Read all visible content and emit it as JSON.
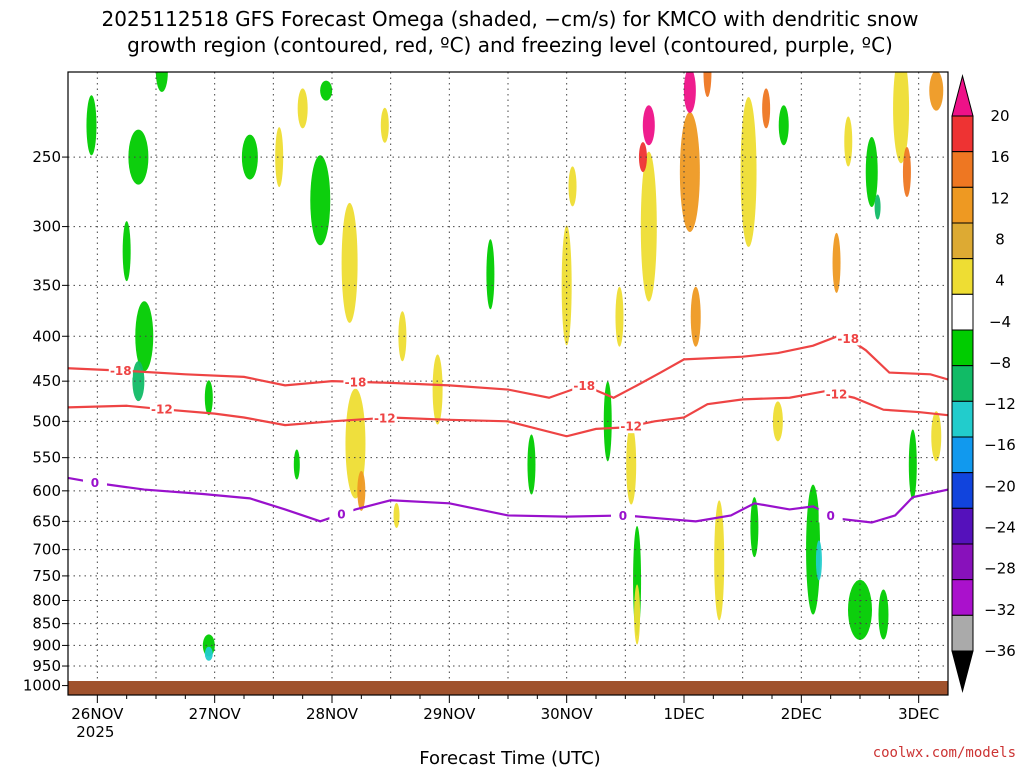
{
  "chart_data": {
    "type": "heatmap",
    "title_lines": [
      "2025112518 GFS Forecast Omega (shaded, −cm/s) for KMCO with dendritic snow",
      "growth region (contoured, red, ºC) and freezing level (contoured, purple, ºC)"
    ],
    "xlabel": "Forecast Time (UTC)",
    "credit": "coolwx.com/models",
    "x_ticks": [
      {
        "label": "26NOV",
        "sub": "2025",
        "day": 0
      },
      {
        "label": "27NOV",
        "day": 1
      },
      {
        "label": "28NOV",
        "day": 2
      },
      {
        "label": "29NOV",
        "day": 3
      },
      {
        "label": "30NOV",
        "day": 4
      },
      {
        "label": "1DEC",
        "day": 5
      },
      {
        "label": "2DEC",
        "day": 6
      },
      {
        "label": "3DEC",
        "day": 7
      }
    ],
    "x_range_days": [
      -0.25,
      7.25
    ],
    "y_ticks": [
      250,
      300,
      350,
      400,
      450,
      500,
      550,
      600,
      650,
      700,
      750,
      800,
      850,
      900,
      950,
      1000
    ],
    "y_range_hpa": [
      200,
      1025
    ],
    "y_scale": "log",
    "colorbar": {
      "labels": [
        "20",
        "16",
        "12",
        "8",
        "4",
        "−4",
        "−8",
        "−12",
        "−16",
        "−20",
        "−24",
        "−28",
        "−32",
        "−36"
      ],
      "colors": [
        "#ee1188",
        "#ee3333",
        "#ee7722",
        "#ee9922",
        "#ddaa33",
        "#eedd33",
        "#ffffff",
        "#00cc00",
        "#11bb66",
        "#22cccc",
        "#1199ee",
        "#1144dd",
        "#5511bb",
        "#8811bb",
        "#aa11cc",
        "#aaaaaa",
        "#000000"
      ]
    },
    "contours": [
      {
        "name": "-18",
        "color": "#ee4444",
        "label_days": [
          0.2,
          2.2,
          4.15,
          6.4
        ],
        "points": [
          [
            -0.25,
            435
          ],
          [
            0.25,
            438
          ],
          [
            0.75,
            442
          ],
          [
            1.25,
            445
          ],
          [
            1.6,
            455
          ],
          [
            2.0,
            450
          ],
          [
            2.5,
            452
          ],
          [
            3.0,
            455
          ],
          [
            3.5,
            460
          ],
          [
            3.85,
            470
          ],
          [
            4.15,
            455
          ],
          [
            4.4,
            470
          ],
          [
            4.6,
            455
          ],
          [
            4.8,
            440
          ],
          [
            5.0,
            425
          ],
          [
            5.5,
            422
          ],
          [
            5.8,
            418
          ],
          [
            6.1,
            410
          ],
          [
            6.35,
            398
          ],
          [
            6.55,
            415
          ],
          [
            6.75,
            440
          ],
          [
            7.1,
            442
          ],
          [
            7.25,
            448
          ]
        ]
      },
      {
        "name": "-12",
        "color": "#ee4444",
        "label_days": [
          0.55,
          2.45,
          4.55,
          6.3
        ],
        "points": [
          [
            -0.25,
            482
          ],
          [
            0.25,
            480
          ],
          [
            0.6,
            485
          ],
          [
            1.0,
            490
          ],
          [
            1.25,
            495
          ],
          [
            1.6,
            505
          ],
          [
            2.0,
            500
          ],
          [
            2.5,
            495
          ],
          [
            3.0,
            498
          ],
          [
            3.5,
            500
          ],
          [
            4.0,
            520
          ],
          [
            4.25,
            510
          ],
          [
            4.5,
            508
          ],
          [
            4.75,
            500
          ],
          [
            5.0,
            495
          ],
          [
            5.2,
            478
          ],
          [
            5.5,
            472
          ],
          [
            5.9,
            470
          ],
          [
            6.2,
            462
          ],
          [
            6.45,
            470
          ],
          [
            6.7,
            485
          ],
          [
            7.0,
            488
          ],
          [
            7.25,
            492
          ]
        ]
      },
      {
        "name": "0",
        "color": "#9911cc",
        "label_days": [
          -0.02,
          2.08,
          4.48,
          6.25
        ],
        "points": [
          [
            -0.25,
            580
          ],
          [
            0.0,
            588
          ],
          [
            0.4,
            598
          ],
          [
            0.9,
            605
          ],
          [
            1.3,
            612
          ],
          [
            1.6,
            630
          ],
          [
            1.9,
            650
          ],
          [
            2.2,
            630
          ],
          [
            2.5,
            615
          ],
          [
            3.0,
            620
          ],
          [
            3.5,
            640
          ],
          [
            4.0,
            642
          ],
          [
            4.5,
            640
          ],
          [
            4.8,
            645
          ],
          [
            5.1,
            650
          ],
          [
            5.4,
            640
          ],
          [
            5.6,
            620
          ],
          [
            5.9,
            630
          ],
          [
            6.1,
            625
          ],
          [
            6.3,
            645
          ],
          [
            6.6,
            652
          ],
          [
            6.8,
            640
          ],
          [
            6.95,
            610
          ],
          [
            7.25,
            598
          ]
        ]
      }
    ]
  }
}
